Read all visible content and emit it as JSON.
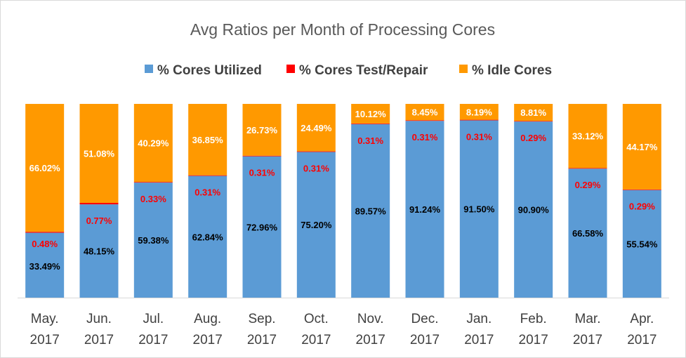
{
  "chart_data": {
    "type": "bar",
    "stacked": true,
    "title": "Avg Ratios per Month of Processing Cores",
    "legend_position": "top",
    "grid": false,
    "ylim": [
      0,
      100
    ],
    "categories": [
      [
        "May.",
        "2017"
      ],
      [
        "Jun.",
        "2017"
      ],
      [
        "Jul.",
        "2017"
      ],
      [
        "Aug.",
        "2017"
      ],
      [
        "Sep.",
        "2017"
      ],
      [
        "Oct.",
        "2017"
      ],
      [
        "Nov.",
        "2017"
      ],
      [
        "Dec.",
        "2017"
      ],
      [
        "Jan.",
        "2017"
      ],
      [
        "Feb.",
        "2017"
      ],
      [
        "Mar.",
        "2017"
      ],
      [
        "Apr.",
        "2017"
      ]
    ],
    "series": [
      {
        "name": "% Cores Utilized",
        "color": "#5b9bd5",
        "label_color": "#000000",
        "values": [
          33.49,
          48.15,
          59.38,
          62.84,
          72.96,
          75.2,
          89.57,
          91.24,
          91.5,
          90.9,
          66.58,
          55.54
        ],
        "labels": [
          "33.49%",
          "48.15%",
          "59.38%",
          "62.84%",
          "72.96%",
          "75.20%",
          "89.57%",
          "91.24%",
          "91.50%",
          "90.90%",
          "66.58%",
          "55.54%"
        ]
      },
      {
        "name": "% Cores Test/Repair",
        "color": "#ff0000",
        "label_color": "#ff0000",
        "values": [
          0.48,
          0.77,
          0.33,
          0.31,
          0.31,
          0.31,
          0.31,
          0.31,
          0.31,
          0.29,
          0.29,
          0.29
        ],
        "labels": [
          "0.48%",
          "0.77%",
          "0.33%",
          "0.31%",
          "0.31%",
          "0.31%",
          "0.31%",
          "0.31%",
          "0.31%",
          "0.29%",
          "0.29%",
          "0.29%"
        ]
      },
      {
        "name": "% Idle Cores",
        "color": "#ff9900",
        "label_color": "#ffffff",
        "values": [
          66.02,
          51.08,
          40.29,
          36.85,
          26.73,
          24.49,
          10.12,
          8.45,
          8.19,
          8.81,
          33.12,
          44.17
        ],
        "labels": [
          "66.02%",
          "51.08%",
          "40.29%",
          "36.85%",
          "26.73%",
          "24.49%",
          "10.12%",
          "8.45%",
          "8.19%",
          "8.81%",
          "33.12%",
          "44.17%"
        ]
      }
    ]
  }
}
